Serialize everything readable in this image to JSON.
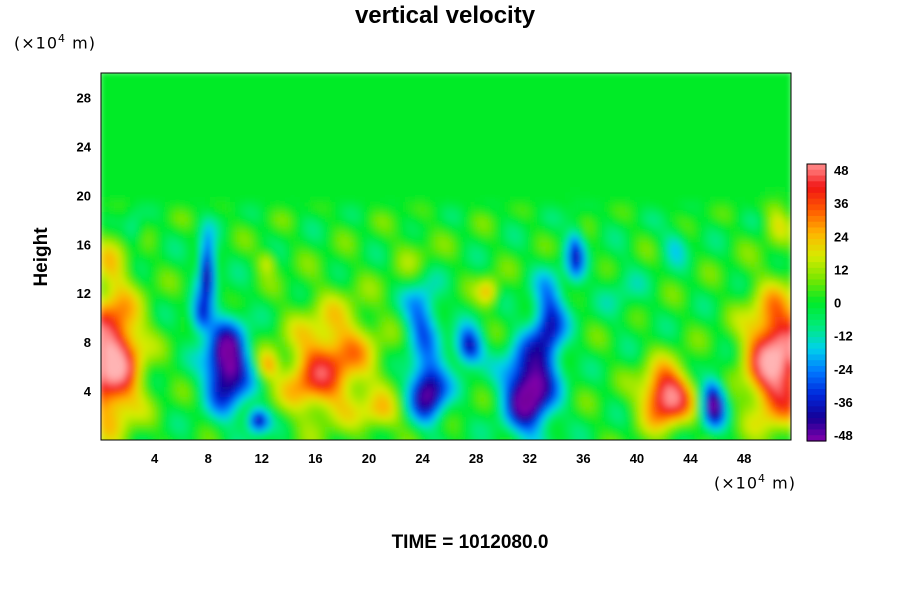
{
  "chart_data": {
    "type": "heatmap",
    "title": "vertical velocity",
    "ylabel": "Height",
    "x_unit_prefix": "(×10",
    "x_unit_exp": "4",
    "x_unit_suffix": " m)",
    "y_unit_prefix": "(×10",
    "y_unit_exp": "4",
    "y_unit_suffix": " m)",
    "xlim": [
      0,
      51.5
    ],
    "ylim": [
      0,
      30
    ],
    "xticks": [
      4,
      8,
      12,
      16,
      20,
      24,
      28,
      32,
      36,
      40,
      44,
      48
    ],
    "yticks": [
      4,
      8,
      12,
      16,
      20,
      24,
      28
    ],
    "colorbar": {
      "ticks": [
        48,
        36,
        24,
        12,
        0,
        -12,
        -24,
        -36,
        -48
      ],
      "range": [
        -48,
        48
      ],
      "placement": "right"
    },
    "features": [
      {
        "x": 0.8,
        "y": 6.5,
        "value": 55,
        "sx": 2.2,
        "sy": 5.0
      },
      {
        "x": 50.5,
        "y": 6.5,
        "value": 55,
        "sx": 2.2,
        "sy": 5.0
      },
      {
        "x": 42.3,
        "y": 3.5,
        "value": 52,
        "sx": 1.8,
        "sy": 2.4
      },
      {
        "x": 17.5,
        "y": 6.5,
        "value": 30,
        "sx": 3.2,
        "sy": 4.5
      },
      {
        "x": 15.5,
        "y": 4.5,
        "value": 16,
        "sx": 2.0,
        "sy": 2.5
      },
      {
        "x": 21.0,
        "y": 2.0,
        "value": 18,
        "sx": 1.5,
        "sy": 1.5
      },
      {
        "x": 29.0,
        "y": 12.0,
        "value": 22,
        "sx": 0.8,
        "sy": 1.2
      },
      {
        "x": 12.5,
        "y": 14.5,
        "value": 16,
        "sx": 0.7,
        "sy": 1.0
      },
      {
        "x": 12.5,
        "y": 6.0,
        "value": 20,
        "sx": 0.8,
        "sy": 1.2
      },
      {
        "x": 1.0,
        "y": 15.0,
        "value": 12,
        "sx": 1.5,
        "sy": 3.0
      },
      {
        "x": 50.5,
        "y": 18.0,
        "value": 12,
        "sx": 1.0,
        "sy": 2.0
      },
      {
        "x": 23.5,
        "y": 15.0,
        "value": 8,
        "sx": 1.5,
        "sy": 2.5
      },
      {
        "x": 9.5,
        "y": 6.0,
        "value": -55,
        "sx": 1.6,
        "sy": 3.5
      },
      {
        "x": 8.0,
        "y": 14.0,
        "value": -45,
        "sx": 0.6,
        "sy": 2.5
      },
      {
        "x": 7.5,
        "y": 10.0,
        "value": -30,
        "sx": 0.8,
        "sy": 1.5
      },
      {
        "x": 11.8,
        "y": 1.5,
        "value": -40,
        "sx": 0.8,
        "sy": 1.0
      },
      {
        "x": 24.5,
        "y": 4.0,
        "value": -48,
        "sx": 1.4,
        "sy": 2.5
      },
      {
        "x": 24.0,
        "y": 10.0,
        "value": -28,
        "sx": 1.3,
        "sy": 3.0
      },
      {
        "x": 27.5,
        "y": 7.5,
        "value": -40,
        "sx": 1.0,
        "sy": 1.5
      },
      {
        "x": 32.0,
        "y": 4.0,
        "value": -55,
        "sx": 1.8,
        "sy": 3.5
      },
      {
        "x": 33.5,
        "y": 9.5,
        "value": -35,
        "sx": 1.2,
        "sy": 3.5
      },
      {
        "x": 35.5,
        "y": 15.0,
        "value": -28,
        "sx": 0.7,
        "sy": 2.5
      },
      {
        "x": 45.8,
        "y": 3.0,
        "value": -45,
        "sx": 0.9,
        "sy": 2.0
      },
      {
        "x": 2.5,
        "y": 17.0,
        "value": -15,
        "sx": 0.8,
        "sy": 1.5
      },
      {
        "x": 43.0,
        "y": 16.0,
        "value": -14,
        "sx": 1.0,
        "sy": 1.5
      },
      {
        "x": 39.0,
        "y": 12.0,
        "value": -8,
        "sx": 1.5,
        "sy": 2.5
      }
    ]
  },
  "time_label": "TIME = 1012080.0"
}
